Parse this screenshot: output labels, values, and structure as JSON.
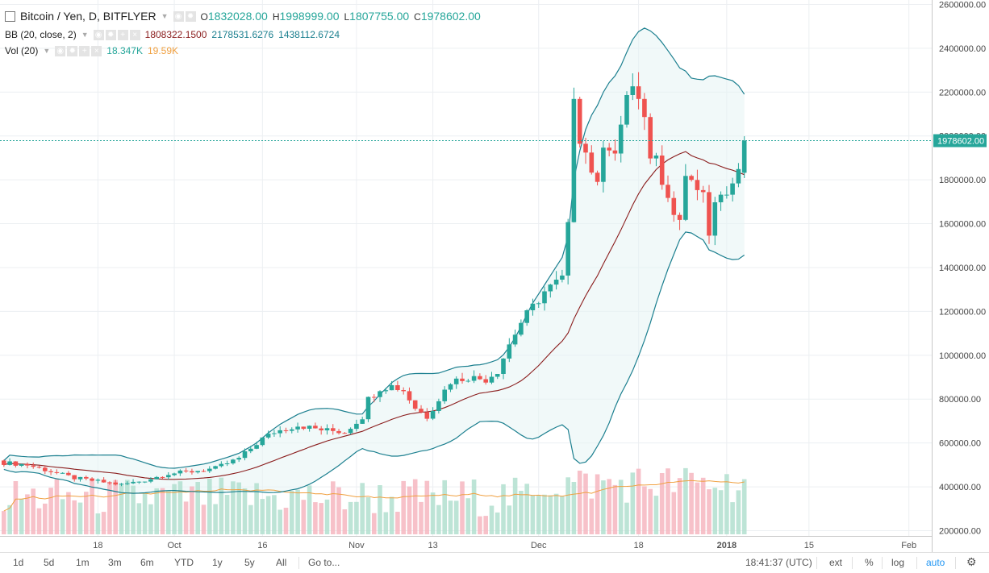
{
  "header": {
    "symbol_title": "Bitcoin / Yen, D, BITFLYER",
    "ohlc": [
      {
        "key": "O",
        "value": "1832028.00"
      },
      {
        "key": "H",
        "value": "1998999.00"
      },
      {
        "key": "L",
        "value": "1807755.00"
      },
      {
        "key": "C",
        "value": "1978602.00"
      }
    ]
  },
  "bb_legend": {
    "title": "BB (20, close, 2)",
    "basis": "1808322.1500",
    "upper": "2178531.6276",
    "lower": "1438112.6724"
  },
  "vol_legend": {
    "title": "Vol (20)",
    "volume": "18.347K",
    "ma": "19.59K"
  },
  "colors": {
    "up": "#26a69a",
    "down": "#ef5350",
    "vol_up": "#b2dfcf",
    "vol_down": "#f6b6bf",
    "bb_band": "#1b7f8f",
    "bb_basis": "#8a1c1c",
    "vol_ma": "#f0a040"
  },
  "price_label": "1978602.00",
  "time_label": "18:41:37 (UTC)",
  "bottom_bar": {
    "ranges": [
      "1d",
      "5d",
      "1m",
      "3m",
      "6m",
      "YTD",
      "1y",
      "5y",
      "All"
    ],
    "goto": "Go to...",
    "ext": "ext",
    "pct": "%",
    "log": "log",
    "auto": "auto",
    "gear": "⚙"
  },
  "chart_data": {
    "type": "candlestick",
    "title": "Bitcoin / Yen, D, BITFLYER",
    "xlabel": "",
    "ylabel": "",
    "ylim": [
      200000,
      2600000
    ],
    "y_ticks": [
      200000,
      400000,
      600000,
      800000,
      1000000,
      1200000,
      1400000,
      1600000,
      1800000,
      2000000,
      2200000,
      2400000,
      2600000
    ],
    "y_tick_labels": [
      "200000.00",
      "400000.00",
      "600000.00",
      "800000.00",
      "1000000.00",
      "1200000.00",
      "1400000.00",
      "1600000.00",
      "1800000.00",
      "2000000.00",
      "2200000.00",
      "2400000.00",
      "2600000.00"
    ],
    "x_ticks": [
      {
        "label": "18",
        "index": 16
      },
      {
        "label": "Oct",
        "index": 29
      },
      {
        "label": "16",
        "index": 44
      },
      {
        "label": "Nov",
        "index": 60
      },
      {
        "label": "13",
        "index": 73
      },
      {
        "label": "Dec",
        "index": 91
      },
      {
        "label": "18",
        "index": 108
      },
      {
        "label": "2018",
        "index": 123,
        "bold": true
      },
      {
        "label": "15",
        "index": 137
      },
      {
        "label": "Feb",
        "index": 154
      }
    ],
    "x_span": [
      0,
      170
    ],
    "last_price": 1978602,
    "bar_count": 127
  }
}
